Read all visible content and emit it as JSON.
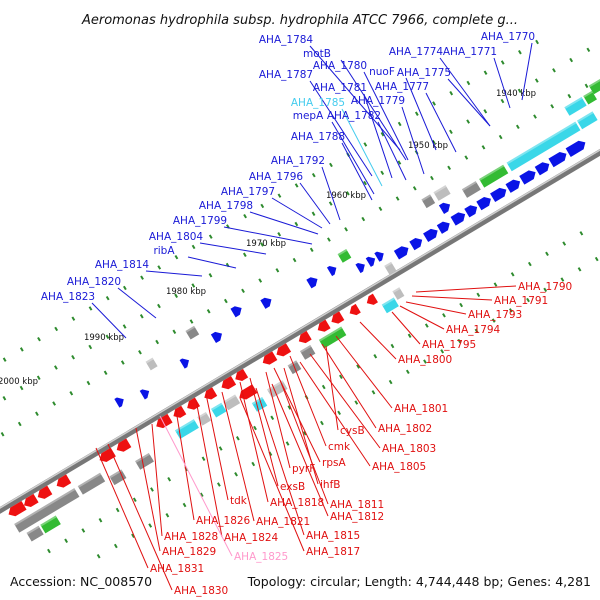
{
  "title": "Aeromonas hydrophila subsp. hydrophila ATCC 7966, complete g...",
  "footer": {
    "accession": "Accession: NC_008570",
    "topology": "Topology: circular; Length: 4,744,448 bp; Genes: 4,281"
  },
  "colors": {
    "forward_label": "#1a1ad6",
    "reverse_label": "#e01010",
    "highlight_forward": "#44ccee",
    "highlight_reverse": "#ff99cc",
    "forward_feature": "#0a14e6",
    "reverse_feature": "#ee1111",
    "cyan_feature": "#3ad7e8",
    "green_feature": "#33bb33",
    "gray_feature": "#888888"
  },
  "ticks": [
    "1940 kbp",
    "1950 kbp",
    "1960 kbp",
    "1970 kbp",
    "1980 kbp",
    "1990 kbp",
    "2000 kbp"
  ],
  "forward_genes": [
    "AHA_1784",
    "motB",
    "AHA_1787",
    "AHA_1780",
    "nuoF",
    "AHA_1781",
    "AHA_1785",
    "mepA",
    "AHA_1782",
    "AHA_1779",
    "AHA_1777",
    "AHA_1775",
    "AHA_1774",
    "AHA_1771",
    "AHA_1770",
    "AHA_1788",
    "AHA_1792",
    "AHA_1796",
    "AHA_1797",
    "AHA_1798",
    "AHA_1799",
    "AHA_1804",
    "ribA",
    "AHA_1814",
    "AHA_1820",
    "AHA_1823"
  ],
  "reverse_genes": [
    "AHA_1790",
    "AHA_1791",
    "AHA_1793",
    "AHA_1794",
    "AHA_1795",
    "AHA_1800",
    "AHA_1801",
    "AHA_1802",
    "cysB",
    "AHA_1803",
    "cmk",
    "AHA_1805",
    "rpsA",
    "pyrF",
    "ihfB",
    "exsB",
    "AHA_1818",
    "AHA_1811",
    "AHA_1812",
    "tdk",
    "AHA_1815",
    "AHA_1826",
    "AHA_1821",
    "AHA_1817",
    "AHA_1828",
    "AHA_1824",
    "AHA_1829",
    "AHA_1825",
    "AHA_1831",
    "AHA_1830"
  ],
  "highlighted": [
    "AHA_1785",
    "AHA_1825"
  ]
}
